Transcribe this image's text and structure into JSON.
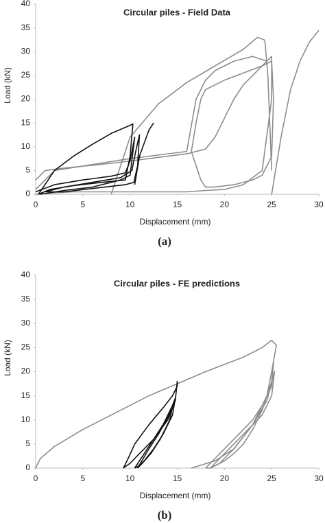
{
  "chart_data": [
    {
      "type": "line",
      "title": "Circular piles - Field Data",
      "xlabel": "Displacement (mm)",
      "ylabel": "Load (kN)",
      "caption": "(a)",
      "xlim": [
        0,
        30
      ],
      "xticks": [
        0,
        5,
        10,
        15,
        20,
        25,
        30
      ],
      "ylim": [
        0,
        40
      ],
      "yticks": [
        0,
        5,
        10,
        15,
        20,
        25,
        30,
        35,
        40
      ],
      "series": [
        {
          "color": "#8c8c8c",
          "x": [
            0,
            1,
            3,
            8,
            12,
            16,
            18,
            19,
            20,
            21,
            22,
            24,
            25,
            25,
            24,
            22,
            20,
            18,
            16,
            12,
            8,
            4,
            2,
            0.5,
            0
          ],
          "values": [
            3,
            5,
            5.5,
            6.5,
            7.5,
            8.5,
            9.5,
            12,
            16,
            20,
            23,
            27,
            29,
            20,
            5,
            2,
            1,
            0.8,
            0.5,
            0.5,
            0.5,
            0.5,
            0.3,
            0,
            0
          ]
        },
        {
          "color": "#8c8c8c",
          "x": [
            0,
            2,
            10,
            16,
            17,
            18,
            19,
            20,
            21,
            22,
            23,
            24.5
          ],
          "values": [
            1,
            5,
            7.5,
            9,
            20,
            24,
            26,
            27,
            28,
            28.5,
            29,
            28
          ]
        },
        {
          "color": "#8c8c8c",
          "x": [
            16.5,
            17,
            17.5,
            18,
            20,
            22,
            24,
            25,
            25.2,
            25,
            24,
            23,
            21,
            19,
            18,
            17.5,
            16.5
          ],
          "values": [
            9,
            15,
            20,
            22,
            24,
            25.5,
            27,
            28,
            20,
            8,
            4,
            3,
            2,
            1.5,
            1.5,
            3,
            9
          ]
        },
        {
          "color": "#8c8c8c",
          "x": [
            8,
            10,
            13,
            16,
            19,
            22,
            23.5,
            24.2,
            24.3,
            24.6,
            24.8,
            25
          ],
          "values": [
            0,
            12,
            19,
            23.5,
            27,
            30.5,
            33,
            32.5,
            32,
            25,
            15,
            5
          ]
        },
        {
          "color": "#8c8c8c",
          "x": [
            25,
            26,
            27,
            28,
            29,
            30
          ],
          "values": [
            0,
            12,
            22,
            28,
            32,
            34.5
          ]
        },
        {
          "color": "#111111",
          "x": [
            0.3,
            2,
            4,
            6,
            8,
            10,
            10.3,
            10,
            9.5,
            7,
            4,
            1.5,
            0.3
          ],
          "values": [
            0,
            5,
            8,
            10.5,
            12.8,
            14.5,
            14.8,
            8,
            3,
            2.5,
            1.8,
            1,
            0
          ]
        },
        {
          "color": "#111111",
          "x": [
            1,
            3,
            6,
            9,
            10.2,
            10.6,
            11,
            10.8,
            10.4,
            9.5,
            6,
            3,
            1
          ],
          "values": [
            0.5,
            1.5,
            2.5,
            3.5,
            5,
            9,
            12.5,
            6,
            2.5,
            2,
            1.2,
            0.5,
            0.5
          ]
        },
        {
          "color": "#111111",
          "x": [
            0,
            2,
            5,
            8,
            9.5,
            10,
            10.5,
            10,
            9,
            6,
            3,
            0.5
          ],
          "values": [
            0.5,
            2,
            3,
            3.8,
            4.5,
            7,
            12,
            4,
            3,
            1.5,
            0.8,
            0
          ]
        },
        {
          "color": "#111111",
          "x": [
            10.5,
            11,
            12,
            12.5
          ],
          "values": [
            2,
            8,
            13.5,
            15
          ]
        }
      ]
    },
    {
      "type": "line",
      "title": "Circular piles - FE predictions",
      "xlabel": "Displacement (mm)",
      "ylabel": "Load (kN)",
      "caption": "(b)",
      "xlim": [
        0,
        30
      ],
      "xticks": [
        0,
        5,
        10,
        15,
        20,
        25,
        30
      ],
      "ylim": [
        0,
        40
      ],
      "yticks": [
        0,
        5,
        10,
        15,
        20,
        25,
        30,
        35,
        40
      ],
      "series": [
        {
          "color": "#8c8c8c",
          "x": [
            0,
            0.5,
            2,
            5,
            8,
            10,
            12,
            15,
            18,
            20,
            22,
            24,
            25,
            25.5,
            25,
            24.5,
            23,
            21,
            19,
            17,
            16.5
          ],
          "values": [
            0,
            2,
            4.5,
            8,
            11,
            13,
            15,
            17.5,
            20,
            21.5,
            23,
            25,
            26.5,
            25.5,
            20,
            15,
            9,
            4,
            1.5,
            0.3,
            0
          ]
        },
        {
          "color": "#8c8c8c",
          "x": [
            18,
            19,
            20,
            21,
            22,
            23,
            24,
            25,
            25.2,
            25,
            24,
            23,
            22,
            21,
            20,
            19,
            18.5,
            18
          ],
          "values": [
            0,
            2,
            4,
            6,
            8,
            10,
            13,
            17,
            22,
            18,
            12,
            8,
            5,
            3,
            1.5,
            0.5,
            0,
            0
          ]
        },
        {
          "color": "#8c8c8c",
          "x": [
            18.5,
            20,
            22,
            24,
            25,
            25.3,
            24.5,
            23,
            21,
            19.5,
            18.5
          ],
          "values": [
            0,
            3,
            7,
            11,
            15,
            20,
            14,
            9,
            4,
            1,
            0
          ]
        },
        {
          "color": "#111111",
          "x": [
            9.3,
            9.8,
            10.5,
            12,
            13.5,
            14.5,
            15,
            15,
            14.8,
            14,
            12.5,
            11,
            10,
            9.5,
            9.3
          ],
          "values": [
            0,
            2,
            5,
            9,
            12.5,
            15,
            17,
            18,
            14,
            10,
            6,
            3,
            1,
            0.3,
            0
          ]
        },
        {
          "color": "#111111",
          "x": [
            10.5,
            11.5,
            12.5,
            13.5,
            14.5,
            14.8,
            14.5,
            13.5,
            12.5,
            11.5,
            10.8,
            10.5
          ],
          "values": [
            0,
            3,
            6,
            9,
            13,
            14.5,
            11,
            7,
            4,
            1.5,
            0.3,
            0
          ]
        },
        {
          "color": "#111111",
          "x": [
            10.8,
            12,
            13,
            14,
            14.6,
            14.2,
            13.2,
            12.2,
            11.3,
            10.8
          ],
          "values": [
            0,
            4,
            7,
            10.5,
            13.5,
            10,
            6,
            3,
            1,
            0
          ]
        }
      ]
    }
  ]
}
